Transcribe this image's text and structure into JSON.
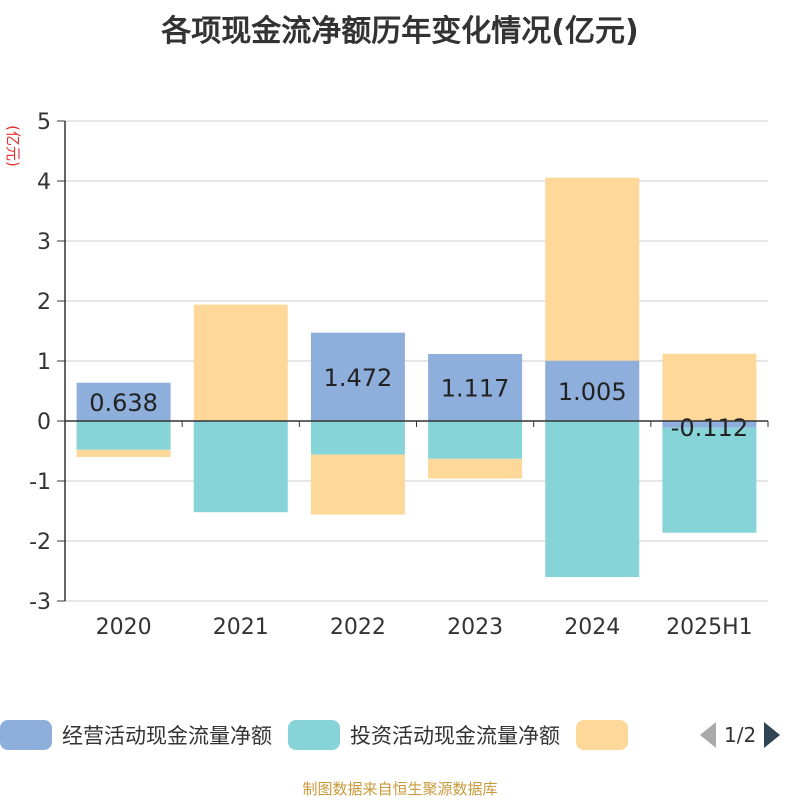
{
  "title": "各项现金流净额历年变化情况(亿元)",
  "source": "制图数据来自恒生聚源数据库",
  "legend": {
    "page": "1/2",
    "items": [
      {
        "label": "经营活动现金流量净额",
        "color": "#8eaedb"
      },
      {
        "label": "投资活动现金流量净额",
        "color": "#86d4d8"
      },
      {
        "label": "",
        "color": "#fdd898"
      }
    ]
  },
  "chart_data": {
    "type": "bar",
    "stacked": true,
    "ylabel": "(亿元)",
    "ylim": [
      -3,
      5
    ],
    "yticks": [
      5,
      4,
      3,
      2,
      1,
      0,
      -1,
      -2,
      -3
    ],
    "grid": true,
    "legend_position": "bottom",
    "categories": [
      "2020",
      "2021",
      "2022",
      "2023",
      "2024",
      "2025H1"
    ],
    "series": [
      {
        "name": "经营活动现金流量净额",
        "color": "#8eaedb",
        "values": [
          0.638,
          0.01,
          1.472,
          1.117,
          1.005,
          -0.112
        ],
        "labels": [
          "0.638",
          "",
          "1.472",
          "1.117",
          "1.005",
          "-0.112"
        ]
      },
      {
        "name": "投资活动现金流量净额",
        "color": "#86d4d8",
        "values": [
          -0.48,
          -1.52,
          -0.56,
          -0.63,
          -2.6,
          -1.75
        ]
      },
      {
        "color": "#fdd898",
        "values": [
          -0.12,
          1.93,
          -1.0,
          -0.33,
          3.05,
          1.12
        ]
      }
    ]
  }
}
